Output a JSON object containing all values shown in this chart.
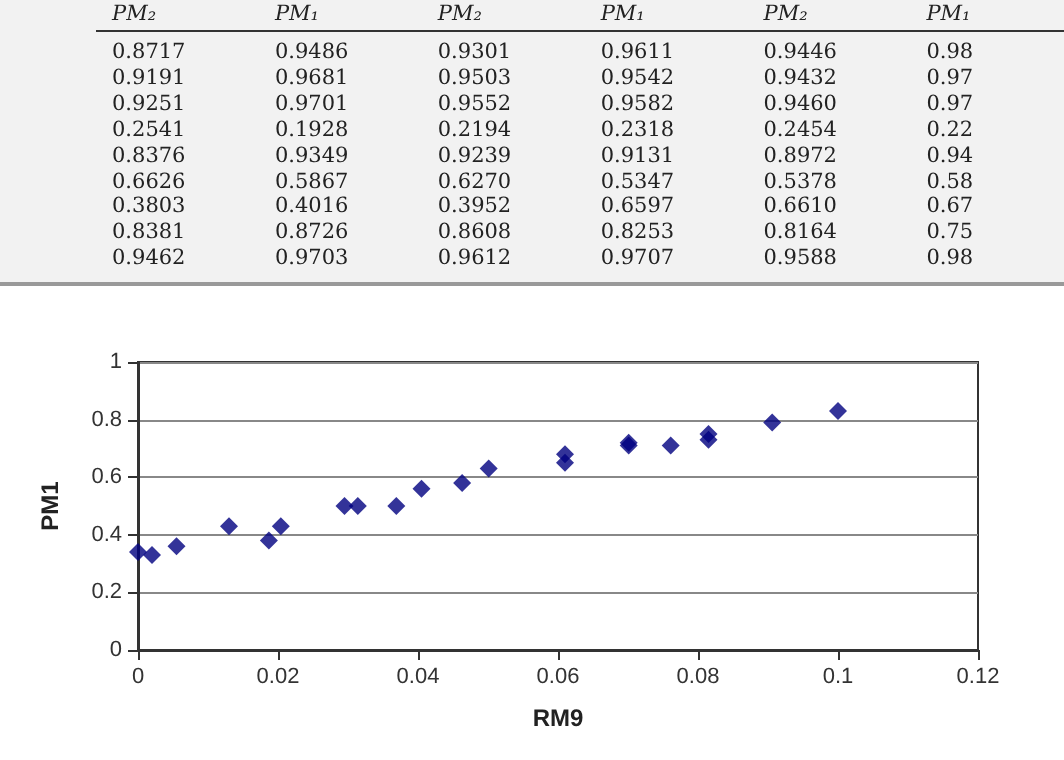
{
  "chart_data": [
    {
      "type": "other",
      "categories": [
        "PM₂",
        "PM₁",
        "PM₂",
        "PM₁",
        "PM₂",
        "PM₁"
      ],
      "annotations": [
        "0.8717",
        "0.9486",
        "0.9301",
        "0.9611",
        "0.9446",
        "0.98",
        "0.9191",
        "0.9681",
        "0.9503",
        "0.9542",
        "0.9432",
        "0.97",
        "0.9251",
        "0.9701",
        "0.9552",
        "0.9582",
        "0.9460",
        "0.97",
        "0.2541",
        "0.1928",
        "0.2194",
        "0.2318",
        "0.2454",
        "0.22",
        "0.8376",
        "0.9349",
        "0.9239",
        "0.9131",
        "0.8972",
        "0.94",
        "0.6626",
        "0.5867",
        "0.6270",
        "0.5347",
        "0.5378",
        "0.58",
        "0.3803",
        "0.4016",
        "0.3952",
        "0.6597",
        "0.6610",
        "0.67",
        "0.8381",
        "0.8726",
        "0.8608",
        "0.8253",
        "0.8164",
        "0.75",
        "0.9462",
        "0.9703",
        "0.9612",
        "0.9707",
        "0.9588",
        "0.98"
      ]
    },
    {
      "type": "scatter",
      "xlabel": "RM9",
      "ylabel": "PM1",
      "color": "#000080",
      "marker": "diamond",
      "grid": "y",
      "xlim": [
        0,
        0.12
      ],
      "xticks": [
        0,
        0.02,
        0.04,
        0.06,
        0.08,
        0.1,
        0.12
      ],
      "ylim": [
        0,
        1
      ],
      "yticks": [
        0,
        0.2,
        0.4,
        0.6,
        0.8,
        1
      ],
      "x": [
        0,
        0.002,
        0.0055,
        0.013,
        0.0187,
        0.0204,
        0.0295,
        0.0314,
        0.0369,
        0.0405,
        0.0463,
        0.0501,
        0.061,
        0.061,
        0.0701,
        0.0701,
        0.0761,
        0.0815,
        0.0815,
        0.0906,
        0.1
      ],
      "values": [
        0.34,
        0.33,
        0.36,
        0.43,
        0.38,
        0.43,
        0.5,
        0.5,
        0.5,
        0.56,
        0.58,
        0.63,
        0.68,
        0.65,
        0.72,
        0.71,
        0.71,
        0.75,
        0.73,
        0.79,
        0.83
      ]
    }
  ]
}
